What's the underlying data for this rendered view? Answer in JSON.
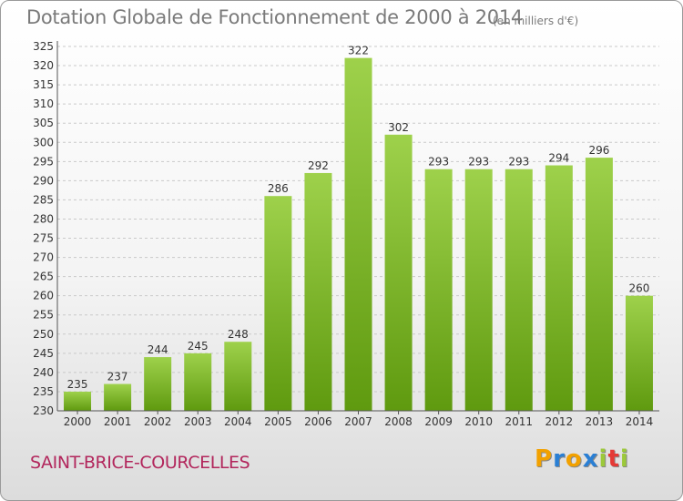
{
  "header": {
    "title": "Dotation Globale de Fonctionnement de 2000 à 2014",
    "subtitle": "(en milliers d'€)"
  },
  "footer": {
    "commune": "SAINT-BRICE-COURCELLES",
    "logo_letters": [
      "P",
      "r",
      "o",
      "x",
      "i",
      "t",
      "i"
    ],
    "logo_colors": [
      "#f2a100",
      "#2a7fd4",
      "#f2a100",
      "#2a7fd4",
      "#9cc93a",
      "#e53935",
      "#9cc93a"
    ]
  },
  "chart_data": {
    "type": "bar",
    "categories": [
      "2000",
      "2001",
      "2002",
      "2003",
      "2004",
      "2005",
      "2006",
      "2007",
      "2008",
      "2009",
      "2010",
      "2011",
      "2012",
      "2013",
      "2014"
    ],
    "values": [
      235,
      237,
      244,
      245,
      248,
      286,
      292,
      322,
      302,
      293,
      293,
      293,
      294,
      296,
      260
    ],
    "title": "Dotation Globale de Fonctionnement de 2000 à 2014",
    "subtitle": "(en milliers d'€)",
    "xlabel": "",
    "ylabel": "",
    "ylim": [
      230,
      325
    ],
    "ytick_step": 5,
    "grid": true,
    "bar_color_light": "#9ed14b",
    "bar_color_dark": "#5f9a0f"
  }
}
